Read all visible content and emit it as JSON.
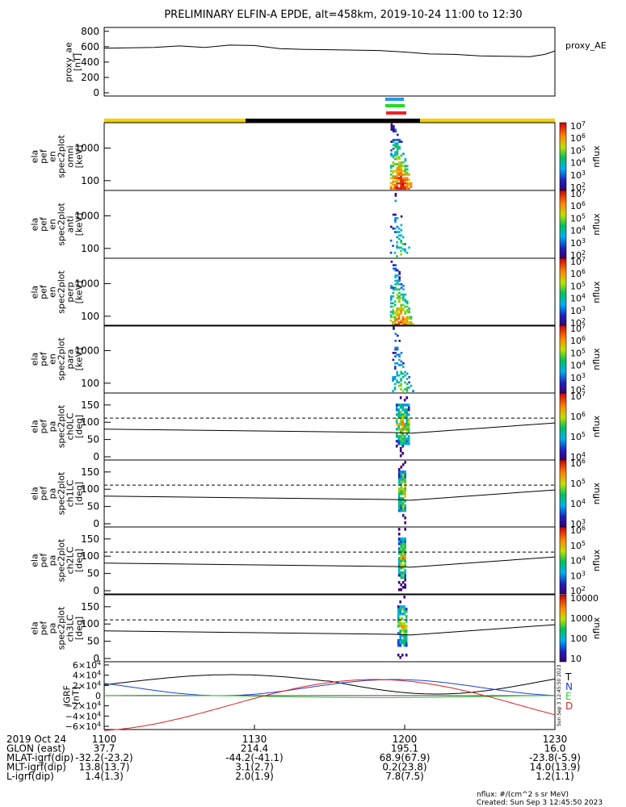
{
  "title": "PRELIMINARY ELFIN-A EPDE, alt=458km, 2019-10-24 11:00 to 12:30",
  "ae_panel": {
    "ylabel_lines": [
      "proxy_ae",
      "[nT]"
    ],
    "legend": "proxy_AE",
    "yticks": [
      "800",
      "600",
      "400",
      "200",
      "0"
    ],
    "ylim": [
      0,
      850
    ],
    "series": {
      "x_min": [
        0,
        5,
        10,
        15,
        20,
        25,
        30,
        35,
        40,
        45,
        50,
        55,
        60,
        65,
        70,
        75,
        80,
        85,
        88,
        90
      ],
      "y": [
        580,
        585,
        590,
        610,
        590,
        620,
        615,
        575,
        565,
        560,
        555,
        550,
        530,
        505,
        500,
        480,
        475,
        470,
        500,
        545
      ]
    }
  },
  "energy_panels": [
    {
      "ylabel_lines": [
        "ela",
        "pef",
        "en",
        "spec2plot",
        "omni",
        "[keV]"
      ]
    },
    {
      "ylabel_lines": [
        "ela",
        "pef",
        "en",
        "spec2plot",
        "anti",
        "[keV]"
      ]
    },
    {
      "ylabel_lines": [
        "ela",
        "pef",
        "en",
        "spec2plot",
        "perp",
        "[keV]"
      ]
    },
    {
      "ylabel_lines": [
        "ela",
        "pef",
        "en",
        "spec2plot",
        "para",
        "[keV]"
      ]
    }
  ],
  "energy_yticks": [
    "1000",
    "100"
  ],
  "energy_colorbar": {
    "label": "nflux",
    "ticks": [
      "10^7",
      "10^6",
      "10^5",
      "10^4",
      "10^3",
      "10^2"
    ]
  },
  "pa_panels": [
    {
      "ylabel_lines": [
        "ela",
        "pef",
        "pa",
        "spec2plot",
        "ch0LC",
        "[deg]"
      ],
      "cbar_ticks": [
        "10^7",
        "10^6",
        "10^5",
        "10^4"
      ]
    },
    {
      "ylabel_lines": [
        "ela",
        "pef",
        "pa",
        "spec2plot",
        "ch1LC",
        "[deg]"
      ],
      "cbar_ticks": [
        "10^6",
        "10^5",
        "10^4",
        "10^3"
      ]
    },
    {
      "ylabel_lines": [
        "ela",
        "pef",
        "pa",
        "spec2plot",
        "ch2LC",
        "[deg]"
      ],
      "cbar_ticks": [
        "10^6",
        "10^5",
        "10^4",
        "10^3",
        "10^2"
      ]
    },
    {
      "ylabel_lines": [
        "ela",
        "pef",
        "pa",
        "spec2plot",
        "ch3LC",
        "[deg]"
      ],
      "cbar_ticks": [
        "10000",
        "1000",
        "100",
        "10"
      ]
    }
  ],
  "pa_yticks": [
    "150",
    "100",
    "50",
    "0"
  ],
  "pa_colorbar_label": "nflux",
  "igrf_panel": {
    "ylabel_lines": [
      "IGRF",
      "[nT]"
    ],
    "yticks": [
      "6×10^4",
      "4×10^4",
      "2×10^4",
      "0",
      "−2×10^4",
      "−4×10^4",
      "−6×10^4"
    ],
    "legend": [
      {
        "label": "T",
        "color": "#000000"
      },
      {
        "label": "N",
        "color": "#1f3fd0"
      },
      {
        "label": "E",
        "color": "#33cc33"
      },
      {
        "label": "D",
        "color": "#dd2222"
      }
    ],
    "side_stamp": "Sun Sep  3 12:45:50 2023"
  },
  "xticks": [
    "1100",
    "1130",
    "1200",
    "1230"
  ],
  "footer_rows": [
    {
      "label": "2019 Oct 24",
      "values": [
        "",
        "",
        "",
        ""
      ]
    },
    {
      "label": "GLON (east)",
      "values": [
        "37.7",
        "214.4",
        "195.1",
        "16.0"
      ]
    },
    {
      "label": "MLAT-igrf(dip)",
      "values": [
        "-32.2(-23.2)",
        "-44.2(-41.1)",
        "68.9(67.9)",
        "-23.8(-5.9)"
      ]
    },
    {
      "label": "MLT-igrf(dip)",
      "values": [
        "13.8(13.7)",
        "3.1(2.7)",
        "0.2(23.8)",
        "14.0(13.9)"
      ]
    },
    {
      "label": "L-igrf(dip)",
      "values": [
        "1.4(1.3)",
        "2.0(1.9)",
        "7.8(7.5)",
        "1.2(1.1)"
      ]
    }
  ],
  "footnote": "nflux: #/(cm^2 s sr MeV)",
  "created": "Created: Sun Sep  3 12:45:50 2023",
  "colors": {
    "sunlight": "#f5d000",
    "shadow": "#000000",
    "bar_blue": "#2299ee",
    "bar_green": "#22dd22",
    "bar_red": "#ee2222"
  },
  "chart_data": {
    "type": "heatmap",
    "title": "PRELIMINARY ELFIN-A EPDE, alt=458km, 2019-10-24 11:00 to 12:30",
    "x_range": [
      "11:00",
      "12:30"
    ],
    "science_zone_minutes": [
      57.5,
      61.0
    ],
    "energy_ylim_keV": [
      50,
      6000
    ],
    "pa_ylim_deg": [
      0,
      180
    ],
    "energy_log_scale": true
  }
}
